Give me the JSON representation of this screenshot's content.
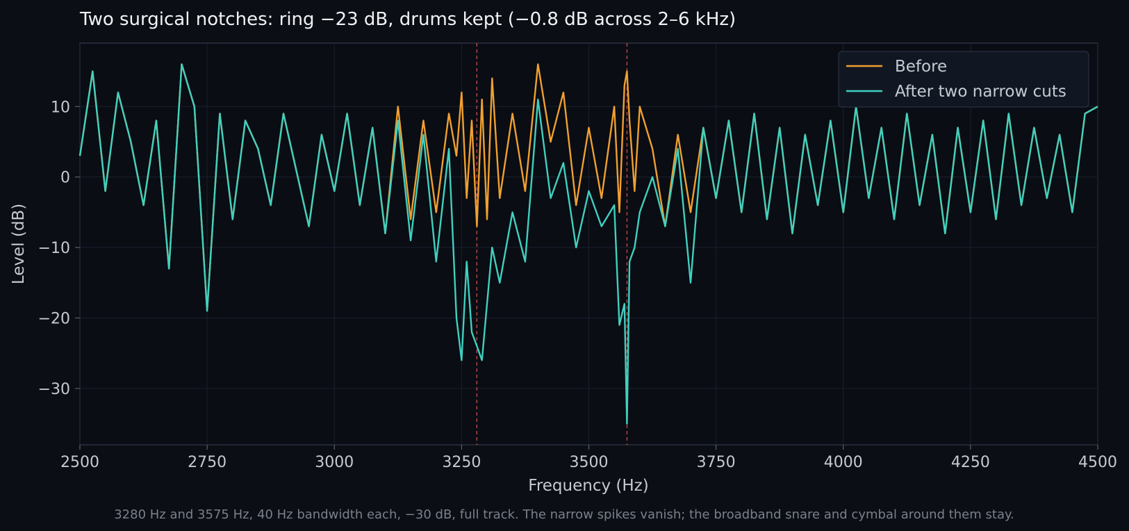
{
  "chart_data": {
    "type": "line",
    "title": "Two surgical notches: ring −23 dB, drums kept (−0.8 dB across 2–6 kHz)",
    "xlabel": "Frequency (Hz)",
    "ylabel": "Level (dB)",
    "caption": "3280 Hz and 3575 Hz, 40 Hz bandwidth each, −30 dB, full track. The narrow spikes vanish; the broadband snare and cymbal around them stay.",
    "xlim": [
      2500,
      4500
    ],
    "ylim": [
      -38,
      19
    ],
    "xticks": [
      2500,
      2750,
      3000,
      3250,
      3500,
      3750,
      4000,
      4250,
      4500
    ],
    "yticks": [
      -30,
      -20,
      -10,
      0,
      10
    ],
    "grid": true,
    "legend_position": "top-right",
    "notch_markers": [
      3280,
      3575
    ],
    "series": [
      {
        "name": "Before",
        "color": "#f0a030",
        "x": [
          2500,
          2525,
          2550,
          2575,
          2600,
          2625,
          2650,
          2675,
          2700,
          2725,
          2750,
          2775,
          2800,
          2825,
          2850,
          2875,
          2900,
          2925,
          2950,
          2975,
          3000,
          3025,
          3050,
          3075,
          3100,
          3125,
          3150,
          3175,
          3200,
          3225,
          3240,
          3250,
          3260,
          3270,
          3280,
          3290,
          3300,
          3310,
          3325,
          3350,
          3375,
          3400,
          3425,
          3450,
          3475,
          3500,
          3525,
          3550,
          3560,
          3570,
          3575,
          3580,
          3590,
          3600,
          3625,
          3650,
          3675,
          3700,
          3725,
          3750,
          3775,
          3800,
          3825,
          3850,
          3875,
          3900,
          3925,
          3950,
          3975,
          4000,
          4025,
          4050,
          4075,
          4100,
          4125,
          4150,
          4175,
          4200,
          4225,
          4250,
          4275,
          4300,
          4325,
          4350,
          4375,
          4400,
          4425,
          4450,
          4475,
          4500
        ],
        "y": [
          3,
          15,
          -2,
          12,
          5,
          -4,
          8,
          -13,
          16,
          10,
          -19,
          9,
          -6,
          8,
          4,
          -4,
          9,
          1,
          -7,
          6,
          -2,
          9,
          -4,
          7,
          -8,
          10,
          -6,
          8,
          -5,
          9,
          3,
          12,
          -3,
          8,
          -7,
          11,
          -6,
          14,
          -3,
          9,
          -2,
          16,
          5,
          12,
          -4,
          7,
          -3,
          10,
          -5,
          13,
          15,
          8,
          -2,
          10,
          4,
          -7,
          6,
          -5,
          7,
          -3,
          8,
          -5,
          9,
          -6,
          7,
          -8,
          6,
          -4,
          8,
          -5,
          10,
          -3,
          7,
          -6,
          9,
          -4,
          6,
          -8,
          7,
          -5,
          8,
          -6,
          9,
          -4,
          7,
          -3,
          6,
          -5,
          9,
          10
        ]
      },
      {
        "name": "After two narrow cuts",
        "color": "#40d0c0",
        "x": [
          2500,
          2525,
          2550,
          2575,
          2600,
          2625,
          2650,
          2675,
          2700,
          2725,
          2750,
          2775,
          2800,
          2825,
          2850,
          2875,
          2900,
          2925,
          2950,
          2975,
          3000,
          3025,
          3050,
          3075,
          3100,
          3125,
          3150,
          3175,
          3200,
          3225,
          3240,
          3250,
          3260,
          3270,
          3280,
          3290,
          3300,
          3310,
          3325,
          3350,
          3375,
          3400,
          3425,
          3450,
          3475,
          3500,
          3525,
          3550,
          3560,
          3570,
          3575,
          3580,
          3590,
          3600,
          3625,
          3650,
          3675,
          3700,
          3725,
          3750,
          3775,
          3800,
          3825,
          3850,
          3875,
          3900,
          3925,
          3950,
          3975,
          4000,
          4025,
          4050,
          4075,
          4100,
          4125,
          4150,
          4175,
          4200,
          4225,
          4250,
          4275,
          4300,
          4325,
          4350,
          4375,
          4400,
          4425,
          4450,
          4475,
          4500
        ],
        "y": [
          3,
          15,
          -2,
          12,
          5,
          -4,
          8,
          -13,
          16,
          10,
          -19,
          9,
          -6,
          8,
          4,
          -4,
          9,
          1,
          -7,
          6,
          -2,
          9,
          -4,
          7,
          -8,
          8,
          -9,
          6,
          -12,
          4,
          -20,
          -26,
          -12,
          -22,
          -24,
          -26,
          -18,
          -10,
          -15,
          -5,
          -12,
          11,
          -3,
          2,
          -10,
          -2,
          -7,
          -4,
          -21,
          -18,
          -35,
          -12,
          -10,
          -5,
          0,
          -7,
          4,
          -15,
          7,
          -3,
          8,
          -5,
          9,
          -6,
          7,
          -8,
          6,
          -4,
          8,
          -5,
          10,
          -3,
          7,
          -6,
          9,
          -4,
          6,
          -8,
          7,
          -5,
          8,
          -6,
          9,
          -4,
          7,
          -3,
          6,
          -5,
          9,
          10
        ]
      }
    ]
  }
}
